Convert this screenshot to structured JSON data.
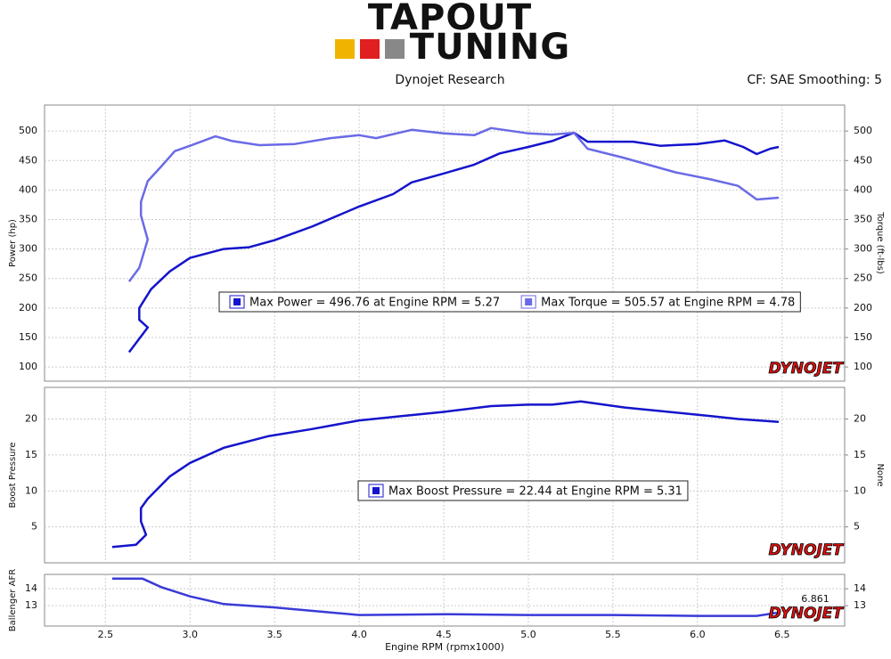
{
  "header": {
    "logo_top": "TAPOUT",
    "logo_bottom": "TUNING",
    "subtitle": "Dynojet Research",
    "settings": "CF: SAE Smoothing: 5",
    "watermark": "DYNOJET"
  },
  "chart_data": [
    {
      "type": "line",
      "ylabel": "Power (hp)",
      "y2label": "Torque (ft-lbs)",
      "xlim": [
        2.14,
        6.87
      ],
      "xticks": [
        2.5,
        3,
        3.5,
        4,
        4.5,
        5,
        5.5,
        6,
        6.5
      ],
      "ylim": [
        76,
        544
      ],
      "yticks": [
        100,
        150,
        200,
        250,
        300,
        350,
        400,
        450,
        500
      ],
      "y2lim": [
        76,
        544
      ],
      "y2ticks": [
        100,
        150,
        200,
        250,
        300,
        350,
        400,
        450,
        500
      ],
      "grid": true,
      "series": [
        {
          "name": "Max Power = 496.76 at Engine RPM = 5.27",
          "color": "#1414cc",
          "x": [
            2.64,
            2.75,
            2.7,
            2.7,
            2.77,
            2.88,
            3.0,
            3.2,
            3.35,
            3.5,
            3.72,
            4.0,
            4.2,
            4.31,
            4.5,
            4.68,
            4.83,
            5.0,
            5.14,
            5.27,
            5.35,
            5.5,
            5.62,
            5.78,
            6.0,
            6.16,
            6.27,
            6.35,
            6.43,
            6.48
          ],
          "values": [
            125,
            167,
            180,
            200,
            232,
            262,
            285,
            300,
            303,
            315,
            338,
            372,
            393,
            413,
            428,
            443,
            462,
            473,
            483,
            497,
            482,
            482,
            482,
            475,
            478,
            484,
            473,
            461,
            470,
            473
          ]
        },
        {
          "name": "Max Torque = 505.57 at Engine RPM = 4.78",
          "color": "#6a6ae6",
          "axis": "y2",
          "x": [
            2.64,
            2.7,
            2.75,
            2.71,
            2.71,
            2.75,
            2.83,
            2.91,
            3.0,
            3.15,
            3.25,
            3.41,
            3.62,
            3.83,
            4.0,
            4.1,
            4.31,
            4.5,
            4.68,
            4.78,
            5.0,
            5.14,
            5.27,
            5.35,
            5.56,
            5.87,
            6.08,
            6.24,
            6.35,
            6.48
          ],
          "values": [
            245,
            268,
            316,
            357,
            380,
            415,
            440,
            466,
            475,
            491,
            483,
            476,
            478,
            488,
            493,
            488,
            502,
            496,
            493,
            505,
            496,
            494,
            497,
            470,
            455,
            430,
            418,
            407,
            384,
            387
          ]
        }
      ]
    },
    {
      "type": "line",
      "ylabel": "Boost Pressure",
      "y2label": "None",
      "xlim": [
        2.14,
        6.87
      ],
      "xticks": [
        2.5,
        3,
        3.5,
        4,
        4.5,
        5,
        5.5,
        6,
        6.5
      ],
      "ylim": [
        0,
        24.4
      ],
      "yticks": [
        5,
        10,
        15,
        20
      ],
      "y2lim": [
        0,
        24.4
      ],
      "y2ticks": [
        5,
        10,
        15,
        20
      ],
      "grid": true,
      "series": [
        {
          "name": "Max Boost Pressure = 22.44 at Engine RPM = 5.31",
          "color": "#1414cc",
          "x": [
            2.54,
            2.68,
            2.74,
            2.71,
            2.71,
            2.75,
            2.88,
            3.0,
            3.2,
            3.46,
            3.72,
            4.0,
            4.25,
            4.5,
            4.78,
            5.0,
            5.14,
            5.31,
            5.57,
            5.83,
            6.08,
            6.24,
            6.48
          ],
          "values": [
            2.2,
            2.5,
            3.9,
            5.75,
            7.6,
            8.9,
            12,
            13.9,
            16,
            17.6,
            18.6,
            19.8,
            20.4,
            21,
            21.8,
            22,
            22,
            22.44,
            21.6,
            21,
            20.4,
            20,
            19.6
          ]
        }
      ]
    },
    {
      "type": "line",
      "ylabel": "Ballenger AFR",
      "xlabel": "Engine RPM (rpmx1000)",
      "annotation": "6.861",
      "xlim": [
        2.14,
        6.87
      ],
      "xticks": [
        2.5,
        {
          "value": 3,
          "label": "3.0"
        },
        3.5,
        {
          "value": 4,
          "label": "4.0"
        },
        4.5,
        {
          "value": 5,
          "label": "5.0"
        },
        5.5,
        {
          "value": 6,
          "label": "6.0"
        },
        6.5
      ],
      "ylim": [
        11.8,
        14.85
      ],
      "yticks": [
        13,
        14
      ],
      "y2lim": [
        11.8,
        14.85
      ],
      "y2ticks": [
        13,
        14
      ],
      "grid": true,
      "series": [
        {
          "color": "#3a3ad8",
          "x": [
            2.54,
            2.72,
            2.83,
            3.0,
            3.2,
            3.5,
            3.72,
            4.0,
            4.5,
            5.0,
            5.5,
            6.0,
            6.35,
            6.48
          ],
          "values": [
            14.6,
            14.6,
            14.1,
            13.55,
            13.1,
            12.9,
            12.7,
            12.45,
            12.5,
            12.45,
            12.45,
            12.4,
            12.4,
            12.6
          ]
        }
      ]
    }
  ]
}
